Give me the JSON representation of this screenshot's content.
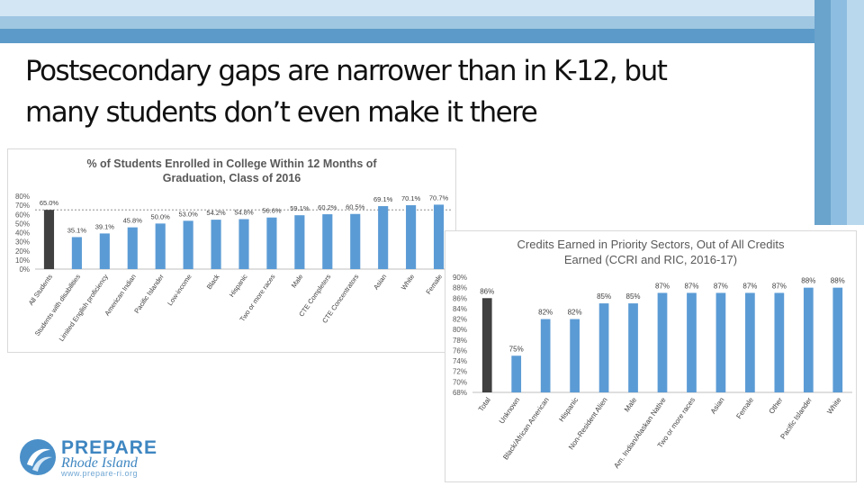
{
  "slide": {
    "title_line1": "Postsecondary gaps are narrower than in K-12, but",
    "title_line2": "many students don’t even make it there"
  },
  "logo": {
    "word1": "PREPARE",
    "word2": "Rhode Island",
    "url": "www.prepare-ri.org"
  },
  "chart_data": [
    {
      "type": "bar",
      "title_line1": "% of Students Enrolled in College Within 12 Months of",
      "title_line2": "Graduation, Class of 2016",
      "categories": [
        "All Students",
        "Students with disabilities",
        "Limited English proficiency",
        "American Indian",
        "Pacific Islander",
        "Low-income",
        "Black",
        "Hispanic",
        "Two or more races",
        "Male",
        "CTE Completers",
        "CTE Concentrators",
        "Asian",
        "White",
        "Female"
      ],
      "values": [
        65.0,
        35.1,
        39.1,
        45.8,
        50.0,
        53.0,
        54.2,
        54.8,
        56.6,
        59.1,
        60.2,
        60.5,
        69.1,
        70.1,
        70.7
      ],
      "data_labels": [
        "65.0%",
        "35.1%",
        "39.1%",
        "45.8%",
        "50.0%",
        "53.0%",
        "54.2%",
        "54.8%",
        "56.6%",
        "59.1%",
        "60.2%",
        "60.5%",
        "69.1%",
        "70.1%",
        "70.7%"
      ],
      "ylim": [
        0,
        80
      ],
      "y_ticks": [
        "0%",
        "10%",
        "20%",
        "30%",
        "40%",
        "50%",
        "60%",
        "70%",
        "80%"
      ],
      "reference_line": 65.0,
      "colors": {
        "highlight": "#404040",
        "bar": "#5b9bd5"
      },
      "grid": false
    },
    {
      "type": "bar",
      "title_line1": "Credits Earned in Priority Sectors, Out of All Credits",
      "title_line2": "Earned (CCRI and RIC, 2016-17)",
      "categories": [
        "Total",
        "Unknown",
        "Black/African American",
        "Hispanic",
        "Non-Resident Alien",
        "Male",
        "Am. Indian/Alaskan Native",
        "Two or more races",
        "Asian",
        "Female",
        "Other",
        "Pacific Islander",
        "White"
      ],
      "values": [
        86,
        75,
        82,
        82,
        85,
        85,
        87,
        87,
        87,
        87,
        87,
        88,
        88
      ],
      "data_labels": [
        "86%",
        "75%",
        "82%",
        "82%",
        "85%",
        "85%",
        "87%",
        "87%",
        "87%",
        "87%",
        "87%",
        "88%",
        "88%"
      ],
      "ylim": [
        68,
        90
      ],
      "y_ticks": [
        "68%",
        "70%",
        "72%",
        "74%",
        "76%",
        "78%",
        "80%",
        "82%",
        "84%",
        "86%",
        "88%",
        "90%"
      ],
      "colors": {
        "highlight": "#404040",
        "bar": "#5b9bd5"
      },
      "grid": false
    }
  ]
}
